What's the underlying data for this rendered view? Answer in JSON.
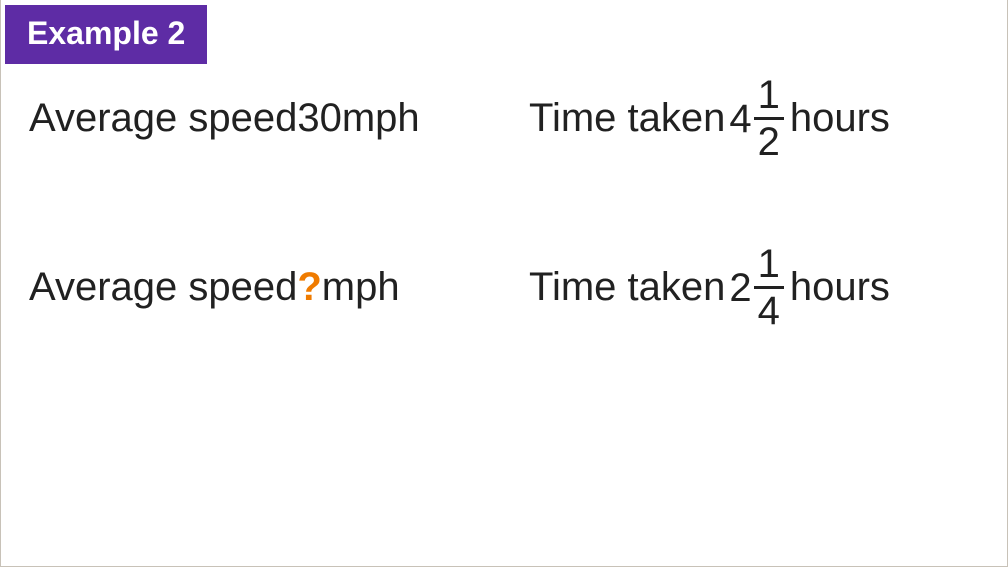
{
  "colors": {
    "badge_bg": "#5e2ca5",
    "badge_text": "#ffffff",
    "body_text": "#212121",
    "highlight": "#ef7b00",
    "frac_bar": "#212121"
  },
  "typography": {
    "badge_fontsize": 32,
    "body_fontsize": 40
  },
  "header": {
    "label": "Example 2"
  },
  "rows": [
    {
      "speed_prefix": "Average speed ",
      "speed_value": "30",
      "speed_is_unknown": false,
      "speed_suffix": " mph",
      "time_prefix": "Time taken ",
      "time_whole": "4",
      "time_numerator": "1",
      "time_denominator": "2",
      "time_suffix": " hours"
    },
    {
      "speed_prefix": "Average speed ",
      "speed_value": "?",
      "speed_is_unknown": true,
      "speed_suffix": " mph",
      "time_prefix": "Time taken ",
      "time_whole": "2",
      "time_numerator": "1",
      "time_denominator": "4",
      "time_suffix": " hours"
    }
  ]
}
